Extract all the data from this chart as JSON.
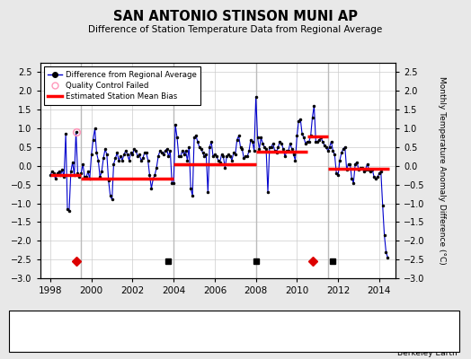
{
  "title": "SAN ANTONIO STINSON MUNI AP",
  "subtitle": "Difference of Station Temperature Data from Regional Average",
  "ylabel": "Monthly Temperature Anomaly Difference (°C)",
  "bg_color": "#e8e8e8",
  "plot_bg_color": "#ffffff",
  "grid_color": "#cccccc",
  "ylim": [
    -3.0,
    2.75
  ],
  "yticks": [
    -3,
    -2.5,
    -2,
    -1.5,
    -1,
    -0.5,
    0,
    0.5,
    1,
    1.5,
    2,
    2.5
  ],
  "xlim": [
    1997.5,
    2014.8
  ],
  "xticks": [
    1998,
    2000,
    2002,
    2004,
    2006,
    2008,
    2010,
    2012,
    2014
  ],
  "time_series": {
    "times": [
      1998.0,
      1998.083,
      1998.167,
      1998.25,
      1998.333,
      1998.417,
      1998.5,
      1998.583,
      1998.667,
      1998.75,
      1998.833,
      1998.917,
      1999.0,
      1999.083,
      1999.167,
      1999.25,
      1999.333,
      1999.417,
      1999.5,
      1999.583,
      1999.667,
      1999.75,
      1999.833,
      1999.917,
      2000.0,
      2000.083,
      2000.167,
      2000.25,
      2000.333,
      2000.417,
      2000.5,
      2000.583,
      2000.667,
      2000.75,
      2000.833,
      2000.917,
      2001.0,
      2001.083,
      2001.167,
      2001.25,
      2001.333,
      2001.417,
      2001.5,
      2001.583,
      2001.667,
      2001.75,
      2001.833,
      2001.917,
      2002.0,
      2002.083,
      2002.167,
      2002.25,
      2002.333,
      2002.417,
      2002.5,
      2002.583,
      2002.667,
      2002.75,
      2002.833,
      2002.917,
      2003.0,
      2003.083,
      2003.167,
      2003.25,
      2003.333,
      2003.417,
      2003.5,
      2003.583,
      2003.667,
      2003.75,
      2003.833,
      2003.917,
      2004.0,
      2004.083,
      2004.167,
      2004.25,
      2004.333,
      2004.417,
      2004.5,
      2004.583,
      2004.667,
      2004.75,
      2004.833,
      2004.917,
      2005.0,
      2005.083,
      2005.167,
      2005.25,
      2005.333,
      2005.417,
      2005.5,
      2005.583,
      2005.667,
      2005.75,
      2005.833,
      2005.917,
      2006.0,
      2006.083,
      2006.167,
      2006.25,
      2006.333,
      2006.417,
      2006.5,
      2006.583,
      2006.667,
      2006.75,
      2006.833,
      2006.917,
      2007.0,
      2007.083,
      2007.167,
      2007.25,
      2007.333,
      2007.417,
      2007.5,
      2007.583,
      2007.667,
      2007.75,
      2007.833,
      2007.917,
      2008.0,
      2008.083,
      2008.167,
      2008.25,
      2008.333,
      2008.417,
      2008.5,
      2008.583,
      2008.667,
      2008.75,
      2008.833,
      2008.917,
      2009.0,
      2009.083,
      2009.167,
      2009.25,
      2009.333,
      2009.417,
      2009.5,
      2009.583,
      2009.667,
      2009.75,
      2009.833,
      2009.917,
      2010.0,
      2010.083,
      2010.167,
      2010.25,
      2010.333,
      2010.417,
      2010.5,
      2010.583,
      2010.667,
      2010.75,
      2010.833,
      2010.917,
      2011.0,
      2011.083,
      2011.167,
      2011.25,
      2011.333,
      2011.417,
      2011.5,
      2011.583,
      2011.667,
      2011.75,
      2011.833,
      2011.917,
      2012.0,
      2012.083,
      2012.167,
      2012.25,
      2012.333,
      2012.417,
      2012.5,
      2012.583,
      2012.667,
      2012.75,
      2012.833,
      2012.917,
      2013.0,
      2013.083,
      2013.167,
      2013.25,
      2013.333,
      2013.417,
      2013.5,
      2013.583,
      2013.667,
      2013.75,
      2013.833,
      2013.917,
      2014.0,
      2014.083,
      2014.167,
      2014.25,
      2014.333,
      2014.417
    ],
    "values": [
      -0.25,
      -0.15,
      -0.2,
      -0.35,
      -0.2,
      -0.15,
      -0.25,
      -0.1,
      -0.3,
      0.85,
      -1.15,
      -1.2,
      -0.15,
      0.1,
      -0.25,
      0.9,
      -0.2,
      -0.3,
      -0.2,
      0.05,
      -0.3,
      -0.3,
      -0.15,
      -0.35,
      0.3,
      0.7,
      1.0,
      0.35,
      0.15,
      -0.3,
      -0.15,
      0.2,
      0.45,
      0.3,
      -0.4,
      -0.8,
      -0.9,
      0.05,
      0.2,
      0.35,
      0.15,
      0.25,
      0.15,
      0.3,
      0.4,
      0.3,
      0.15,
      0.35,
      0.3,
      0.45,
      0.4,
      0.25,
      0.3,
      0.15,
      0.2,
      0.35,
      0.35,
      0.15,
      -0.25,
      -0.6,
      -0.35,
      -0.25,
      -0.05,
      0.25,
      0.4,
      0.35,
      0.3,
      0.4,
      0.45,
      0.25,
      0.4,
      -0.45,
      -0.45,
      1.1,
      0.75,
      0.25,
      0.25,
      0.4,
      0.3,
      0.4,
      0.15,
      0.5,
      -0.6,
      -0.8,
      0.75,
      0.8,
      0.65,
      0.5,
      0.45,
      0.35,
      0.25,
      0.3,
      -0.7,
      0.5,
      0.65,
      0.25,
      0.3,
      0.25,
      0.15,
      0.1,
      0.3,
      0.25,
      -0.05,
      0.25,
      0.3,
      0.25,
      0.15,
      0.35,
      0.3,
      0.7,
      0.8,
      0.5,
      0.45,
      0.2,
      0.25,
      0.25,
      0.4,
      0.7,
      0.65,
      0.4,
      1.85,
      0.75,
      0.45,
      0.75,
      0.6,
      0.5,
      0.45,
      -0.7,
      0.5,
      0.5,
      0.6,
      0.4,
      0.35,
      0.5,
      0.65,
      0.6,
      0.45,
      0.25,
      0.4,
      0.4,
      0.6,
      0.45,
      0.3,
      0.15,
      0.8,
      1.2,
      1.25,
      0.85,
      0.75,
      0.6,
      0.65,
      0.65,
      0.8,
      1.3,
      1.6,
      0.65,
      0.65,
      0.7,
      0.75,
      0.65,
      0.55,
      0.5,
      0.4,
      0.5,
      0.65,
      0.4,
      0.3,
      -0.2,
      -0.25,
      0.15,
      0.35,
      0.45,
      0.5,
      -0.1,
      0.05,
      0.05,
      -0.35,
      -0.45,
      0.05,
      0.1,
      -0.1,
      -0.05,
      -0.05,
      -0.15,
      -0.1,
      0.05,
      -0.1,
      -0.15,
      -0.1,
      -0.3,
      -0.35,
      -0.3,
      -0.2,
      -0.15,
      -1.05,
      -1.85,
      -2.3,
      -2.45
    ]
  },
  "qc_failed": [
    {
      "time": 1999.25,
      "value": 0.9
    }
  ],
  "bias_segments": [
    {
      "x_start": 1998.0,
      "x_end": 1999.5,
      "bias": -0.25
    },
    {
      "x_start": 1999.5,
      "x_end": 2004.0,
      "bias": -0.35
    },
    {
      "x_start": 2004.0,
      "x_end": 2008.0,
      "bias": 0.05
    },
    {
      "x_start": 2008.0,
      "x_end": 2010.5,
      "bias": 0.38
    },
    {
      "x_start": 2010.5,
      "x_end": 2011.5,
      "bias": 0.78
    },
    {
      "x_start": 2011.5,
      "x_end": 2014.5,
      "bias": -0.08
    }
  ],
  "station_moves": [
    1999.25,
    2010.75
  ],
  "empirical_breaks": [
    2003.75,
    2008.0,
    2011.75
  ],
  "obs_changes": [],
  "record_gaps": [],
  "vertical_lines": [
    1999.5,
    2004.0,
    2008.0,
    2011.5
  ],
  "line_color": "#0000cc",
  "marker_color": "#000000",
  "bias_color": "#ff0000",
  "qc_color": "#ff99bb",
  "station_move_color": "#dd0000",
  "empirical_break_color": "#000000",
  "obs_change_color": "#0000ff",
  "record_gap_color": "#008800",
  "vline_color": "#bbbbbb"
}
